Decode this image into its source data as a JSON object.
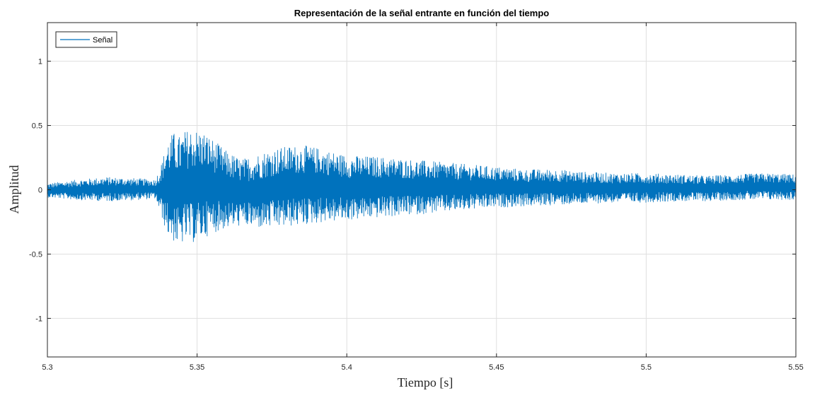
{
  "chart_data": {
    "type": "line",
    "title": "Representación de la señal entrante en función del tiempo",
    "xlabel": "Tiempo [s]",
    "ylabel": "Amplitud",
    "xlim": [
      5.3,
      5.55
    ],
    "ylim": [
      -1.3,
      1.3
    ],
    "xticks": [
      5.3,
      5.35,
      5.4,
      5.45,
      5.5,
      5.55
    ],
    "xtick_labels": [
      "5.3",
      "5.35",
      "5.4",
      "5.45",
      "5.5",
      "5.55"
    ],
    "yticks": [
      -1,
      -0.5,
      0,
      0.5,
      1
    ],
    "ytick_labels": [
      "-1",
      "-0.5",
      "0",
      "0.5",
      "1"
    ],
    "grid": true,
    "legend_position": "top-left",
    "series": [
      {
        "name": "Señal",
        "color": "#0072BD",
        "envelope": {
          "x": [
            5.3,
            5.31,
            5.32,
            5.33,
            5.336,
            5.338,
            5.34,
            5.342,
            5.344,
            5.346,
            5.348,
            5.35,
            5.352,
            5.355,
            5.36,
            5.365,
            5.37,
            5.375,
            5.38,
            5.385,
            5.39,
            5.395,
            5.4,
            5.41,
            5.42,
            5.43,
            5.44,
            5.45,
            5.46,
            5.47,
            5.48,
            5.49,
            5.5,
            5.51,
            5.52,
            5.53,
            5.54,
            5.55
          ],
          "upper": [
            0.05,
            0.08,
            0.1,
            0.09,
            0.08,
            0.2,
            0.38,
            0.45,
            0.42,
            0.46,
            0.48,
            0.47,
            0.46,
            0.4,
            0.3,
            0.24,
            0.28,
            0.32,
            0.34,
            0.35,
            0.33,
            0.3,
            0.27,
            0.26,
            0.24,
            0.22,
            0.2,
            0.18,
            0.16,
            0.16,
            0.14,
            0.13,
            0.13,
            0.12,
            0.11,
            0.12,
            0.13,
            0.12
          ],
          "lower": [
            -0.06,
            -0.08,
            -0.09,
            -0.08,
            -0.07,
            -0.2,
            -0.35,
            -0.4,
            -0.45,
            -0.4,
            -0.42,
            -0.4,
            -0.38,
            -0.34,
            -0.3,
            -0.28,
            -0.3,
            -0.3,
            -0.29,
            -0.28,
            -0.26,
            -0.25,
            -0.24,
            -0.22,
            -0.2,
            -0.18,
            -0.16,
            -0.14,
            -0.13,
            -0.12,
            -0.11,
            -0.1,
            -0.1,
            -0.09,
            -0.09,
            -0.08,
            -0.08,
            -0.08
          ]
        }
      }
    ]
  }
}
